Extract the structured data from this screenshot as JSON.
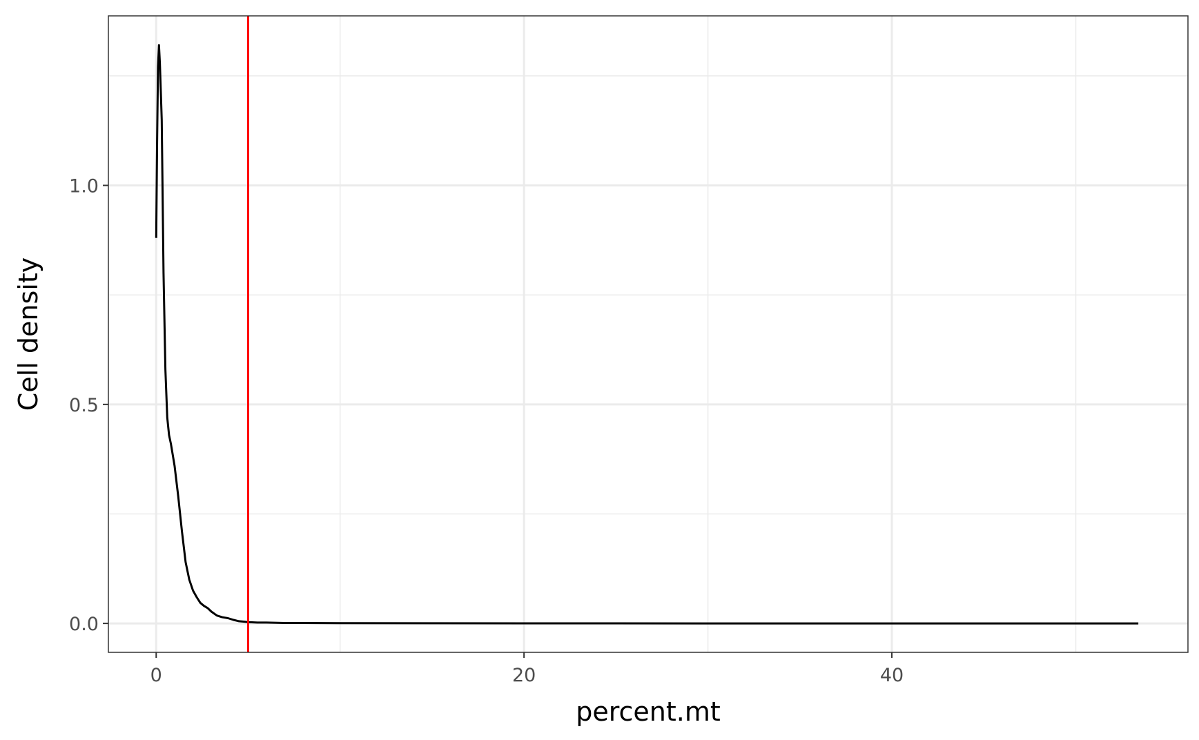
{
  "chart_data": {
    "type": "line",
    "title": "",
    "xlabel": "percent.mt",
    "ylabel": "Cell density",
    "xlim": [
      -2.6,
      56.1
    ],
    "ylim": [
      -0.066,
      1.387
    ],
    "x_ticks": [
      0,
      20,
      40
    ],
    "x_tick_labels": [
      "0",
      "20",
      "40"
    ],
    "x_minor_ticks": [
      10,
      30,
      50
    ],
    "y_ticks": [
      0.0,
      0.5,
      1.0
    ],
    "y_tick_labels": [
      "0.0",
      "0.5",
      "1.0"
    ],
    "y_minor_ticks": [
      0.25,
      0.75,
      1.25
    ],
    "grid": true,
    "legend": "none",
    "vline": {
      "x": 5,
      "color": "#ff0000"
    },
    "series": [
      {
        "color": "#000000",
        "x": [
          0.0,
          0.05,
          0.1,
          0.15,
          0.2,
          0.3,
          0.4,
          0.5,
          0.6,
          0.7,
          0.8,
          1.0,
          1.2,
          1.4,
          1.6,
          1.8,
          2.0,
          2.2,
          2.4,
          2.6,
          2.8,
          3.0,
          3.3,
          3.6,
          3.9,
          4.2,
          4.5,
          4.8,
          5.0,
          5.5,
          6.0,
          7.0,
          8.0,
          10.0,
          15.0,
          20.0,
          30.0,
          40.0,
          53.4
        ],
        "y": [
          0.88,
          1.1,
          1.27,
          1.32,
          1.28,
          1.15,
          0.8,
          0.58,
          0.47,
          0.43,
          0.41,
          0.36,
          0.29,
          0.21,
          0.14,
          0.1,
          0.075,
          0.06,
          0.047,
          0.04,
          0.035,
          0.027,
          0.018,
          0.014,
          0.012,
          0.008,
          0.005,
          0.004,
          0.003,
          0.002,
          0.002,
          0.001,
          0.001,
          0.0005,
          0.0003,
          0.0002,
          0.0001,
          0.0001,
          0.0001
        ]
      }
    ]
  }
}
